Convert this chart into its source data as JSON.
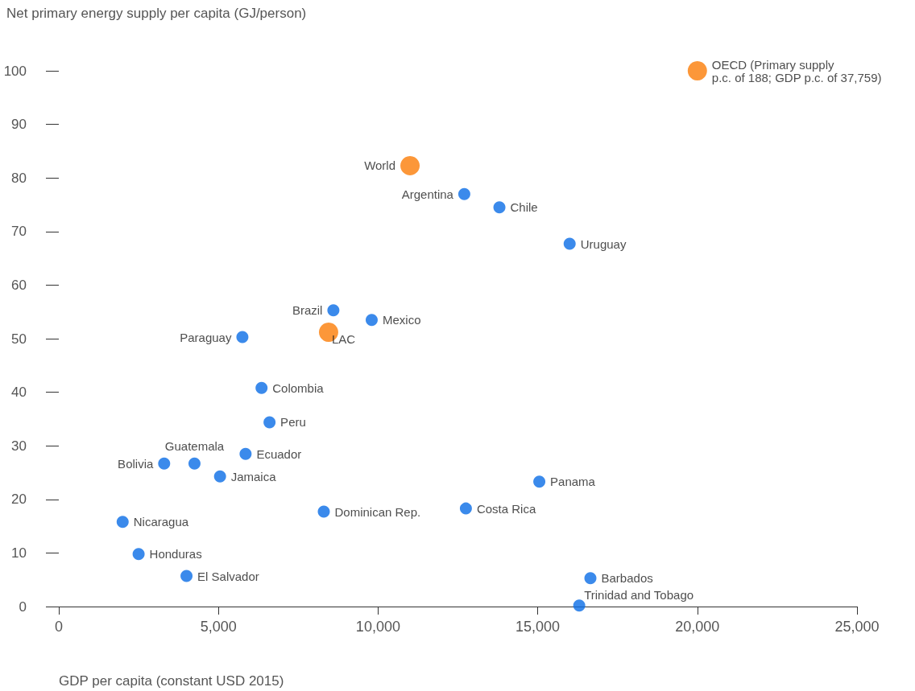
{
  "chart_data": {
    "type": "scatter",
    "ylabel": "Net primary energy supply per capita (GJ/person)",
    "xlabel": "GDP per capita (constant USD 2015)",
    "xlim": [
      0,
      25000
    ],
    "xticks": [
      {
        "value": 0,
        "label": "0"
      },
      {
        "value": 5000,
        "label": "5,000"
      },
      {
        "value": 10000,
        "label": "10,000"
      },
      {
        "value": 15000,
        "label": "15,000"
      },
      {
        "value": 20000,
        "label": "20,000"
      },
      {
        "value": 25000,
        "label": "25,000"
      }
    ],
    "ylim": [
      0,
      100
    ],
    "yticks": [
      0,
      10,
      20,
      30,
      40,
      50,
      60,
      70,
      80,
      90,
      100
    ],
    "grid": false,
    "marker": "circle",
    "series": [
      {
        "color": "#0a6de6",
        "x": [
          12700,
          13800,
          16000,
          8600,
          9800,
          5750,
          6350,
          6600,
          5850,
          4250,
          3300,
          5050,
          15050,
          8300,
          12750,
          2000,
          2500,
          4000,
          16650,
          16300
        ],
        "values": [
          77,
          74.5,
          67.7,
          55.3,
          53.5,
          50.3,
          40.8,
          34.4,
          28.5,
          26.7,
          26.7,
          24.3,
          23.3,
          17.7,
          18.3,
          15.8,
          9.8,
          5.7,
          5.3,
          0.2
        ],
        "value_labels": [
          "Argentina",
          "Chile",
          "Uruguay",
          "Brazil",
          "Mexico",
          "Paraguay",
          "Colombia",
          "Peru",
          "Ecuador",
          "Guatemala",
          "Bolivia",
          "Jamaica",
          "Panama",
          "Dominican Rep.",
          "Costa Rica",
          "Nicaragua",
          "Honduras",
          "El Salvador",
          "Barbados",
          "Trinidad and Tobago"
        ]
      },
      {
        "color": "#fb7d07",
        "x": [
          11000,
          8450,
          20000
        ],
        "values": [
          82.3,
          51.2,
          100
        ],
        "value_labels": [
          "World",
          "LAC",
          "OECD (Primary supply\np.c. of 188; GDP p.c. of 37,759)"
        ]
      }
    ]
  }
}
